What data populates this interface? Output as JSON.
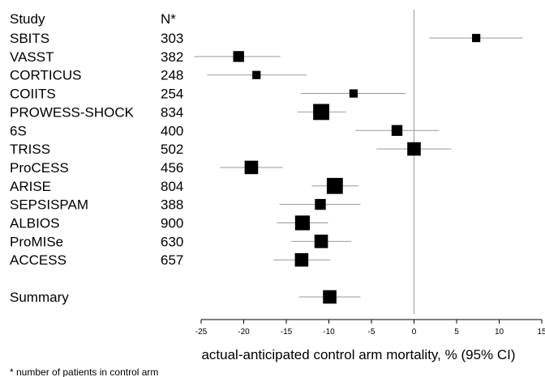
{
  "chart_data": {
    "type": "forest",
    "columns": {
      "study": "Study",
      "n": "N*"
    },
    "studies": [
      {
        "name": "SBITS",
        "n": "303",
        "estimate": 7.3,
        "ci": [
          1.8,
          12.8
        ],
        "size": 1
      },
      {
        "name": "VASST",
        "n": "382",
        "estimate": -20.6,
        "ci": [
          -25.8,
          -15.7
        ],
        "size": 2
      },
      {
        "name": "CORTICUS",
        "n": "248",
        "estimate": -18.5,
        "ci": [
          -24.3,
          -12.6
        ],
        "size": 1
      },
      {
        "name": "COIITS",
        "n": "254",
        "estimate": -7.1,
        "ci": [
          -13.3,
          -1.0
        ],
        "size": 1
      },
      {
        "name": "PROWESS-SHOCK",
        "n": "834",
        "estimate": -10.9,
        "ci": [
          -13.7,
          -8.0
        ],
        "size": 4
      },
      {
        "name": "6S",
        "n": "400",
        "estimate": -2.0,
        "ci": [
          -6.9,
          2.9
        ],
        "size": 2
      },
      {
        "name": "TRISS",
        "n": "502",
        "estimate": 0.0,
        "ci": [
          -4.4,
          4.4
        ],
        "size": 3
      },
      {
        "name": "ProCESS",
        "n": "456",
        "estimate": -19.1,
        "ci": [
          -22.8,
          -15.4
        ],
        "size": 3
      },
      {
        "name": "ARISE",
        "n": "804",
        "estimate": -9.3,
        "ci": [
          -12.0,
          -6.5
        ],
        "size": 4
      },
      {
        "name": "SEPSISPAM",
        "n": "388",
        "estimate": -11.0,
        "ci": [
          -15.8,
          -6.3
        ],
        "size": 2
      },
      {
        "name": "ALBIOS",
        "n": "900",
        "estimate": -13.1,
        "ci": [
          -16.1,
          -10.1
        ],
        "size": 3.5
      },
      {
        "name": "ProMISe",
        "n": "630",
        "estimate": -10.9,
        "ci": [
          -14.4,
          -7.4
        ],
        "size": 3
      },
      {
        "name": "ACCESS",
        "n": "657",
        "estimate": -13.2,
        "ci": [
          -16.5,
          -9.8
        ],
        "size": 3
      }
    ],
    "summary": {
      "name": "Summary",
      "estimate": -9.9,
      "ci": [
        -13.5,
        -6.3
      ],
      "size": 3
    },
    "x_ticks": [
      -25,
      -20,
      -15,
      -10,
      -5,
      0,
      5,
      10,
      15
    ],
    "xlim": [
      -25,
      15
    ],
    "xlabel": "actual-anticipated control arm mortality, % (95% CI)",
    "reference_line": 0,
    "footnote": "* number of patients in control arm"
  }
}
